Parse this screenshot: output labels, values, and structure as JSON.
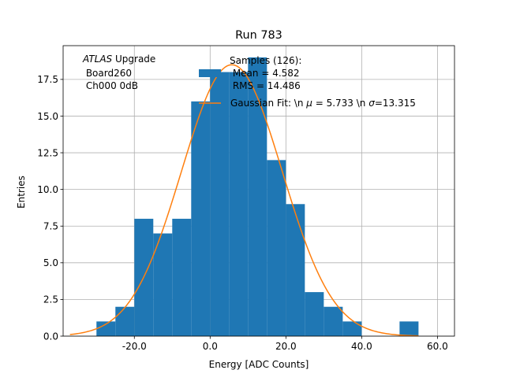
{
  "chart_data": {
    "type": "bar",
    "title": "Run 783",
    "xlabel": "Energy [ADC Counts]",
    "ylabel": "Entries",
    "xlim": [
      -38.8,
      64.5
    ],
    "ylim": [
      0,
      19.8
    ],
    "grid": true,
    "x_ticks": [
      -20,
      0,
      20,
      40,
      60
    ],
    "x_tick_labels": [
      "-20.0",
      "0.0",
      "20.0",
      "40.0",
      "60.0"
    ],
    "y_ticks": [
      0,
      2.5,
      5,
      7.5,
      10,
      12.5,
      15,
      17.5
    ],
    "y_tick_labels": [
      "0.0",
      "2.5",
      "5.0",
      "7.5",
      "10.0",
      "12.5",
      "15.0",
      "17.5"
    ],
    "histogram": {
      "name": "Samples (126):\n Mean = 4.582\n RMS = 14.486",
      "color": "#1f77b4",
      "bin_edges": [
        -30,
        -25,
        -20,
        -15,
        -10,
        -5,
        0,
        5,
        10,
        15,
        20,
        25,
        30,
        35,
        40,
        45,
        50,
        55
      ],
      "counts": [
        1,
        2,
        8,
        7,
        8,
        16,
        18,
        18,
        19,
        12,
        9,
        3,
        2,
        1,
        0,
        0,
        1
      ]
    },
    "fit": {
      "name": "Gaussian Fit: \\n $\\mu$ = 5.733 \\n $\\sigma$=13.315",
      "color": "#ff7f0e",
      "mu": 5.733,
      "sigma": 13.315,
      "amplitude": 18.5,
      "x_range": [
        -37,
        55
      ]
    },
    "legend": {
      "placement": "top-center",
      "hist_lines": [
        "Samples (126):",
        " Mean = 4.582",
        " RMS = 14.486"
      ],
      "fit_label_prefix": "Gaussian Fit: \\n ",
      "fit_mu_symbol": "μ",
      "fit_mid": " = 5.733 \\n ",
      "fit_sigma_symbol": "σ",
      "fit_suffix": "=13.315"
    },
    "annotation": {
      "lines": [
        "ATLAS Upgrade",
        " Board260",
        " Ch000 0dB"
      ],
      "italic_word": "ATLAS",
      "after_italic": " Upgrade"
    }
  }
}
